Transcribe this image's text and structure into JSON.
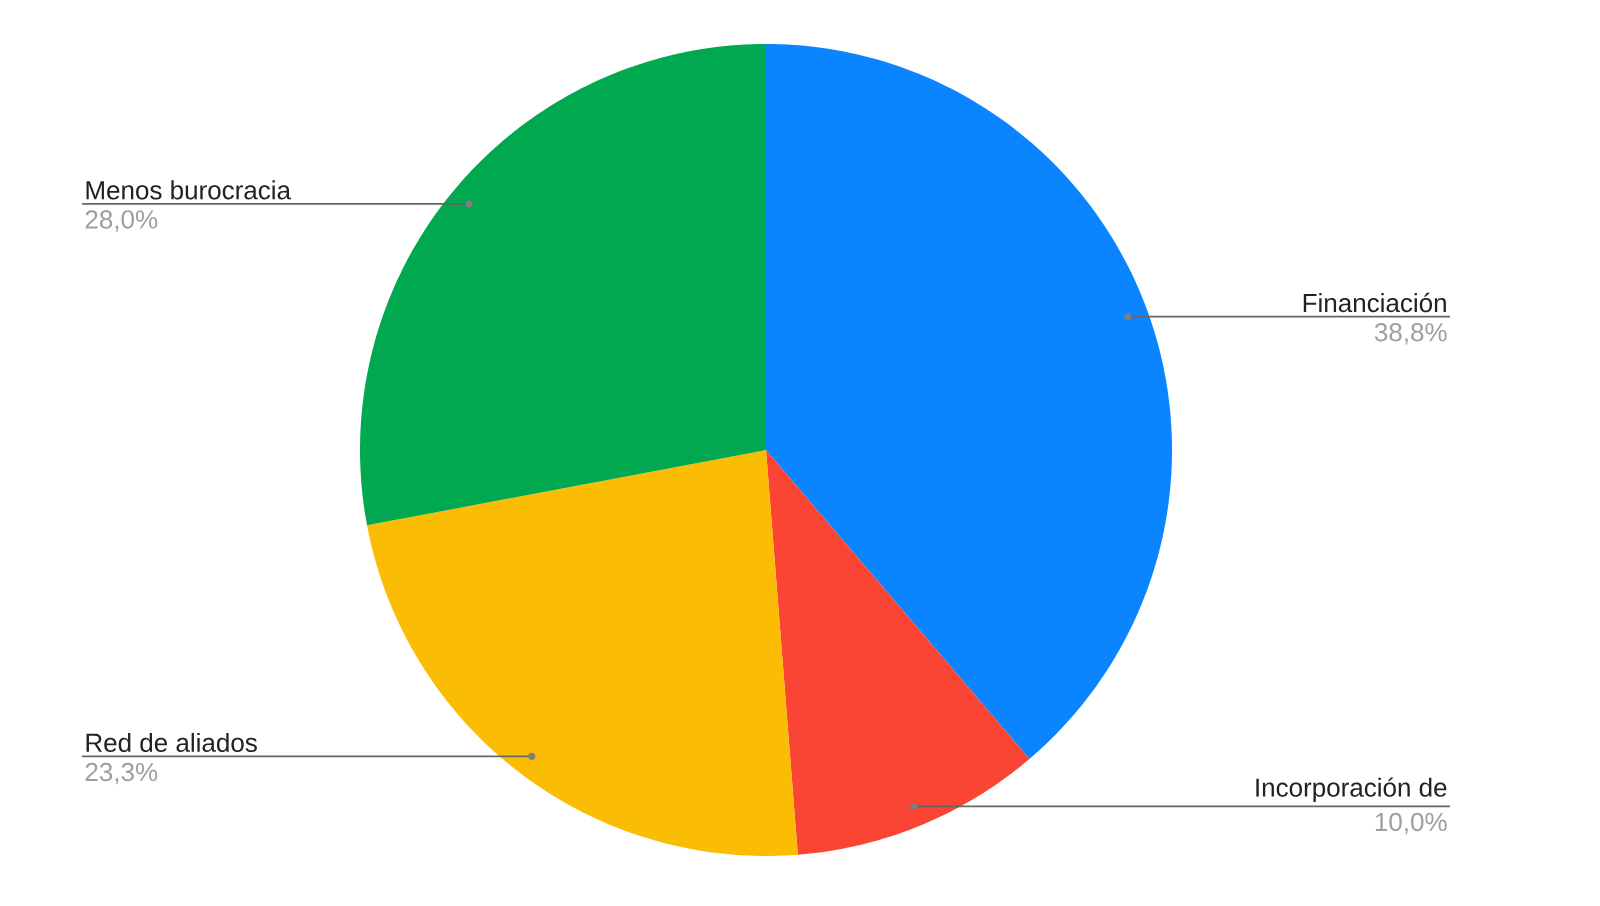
{
  "chart_data": {
    "type": "pie",
    "categories": [
      "Financiación",
      "Incorporación de",
      "Red de aliados",
      "Menos burocracia"
    ],
    "values": [
      38.8,
      10.0,
      23.3,
      28.0
    ],
    "colors": [
      "#0b84ff",
      "#fa4434",
      "#fbbc04",
      "#00a94f"
    ],
    "value_labels": [
      "38,8%",
      "10,0%",
      "23,3%",
      "28,0%"
    ]
  }
}
